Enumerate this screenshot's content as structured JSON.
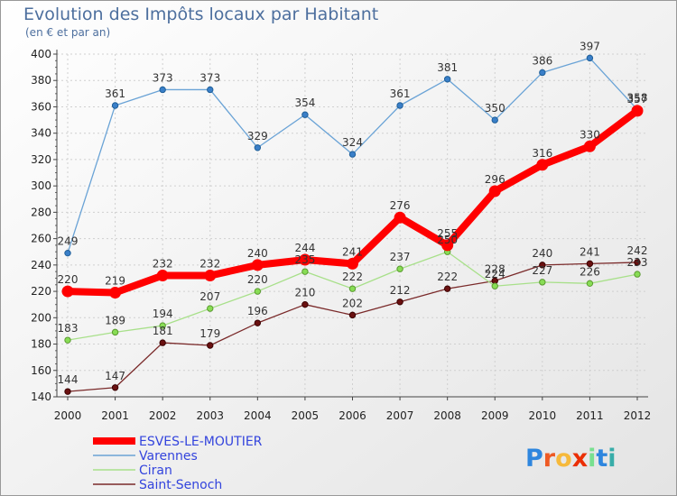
{
  "chart_data": {
    "type": "line",
    "title": "Evolution des Impôts locaux par Habitant",
    "subtitle": "(en € et par an)",
    "x": [
      "2000",
      "2001",
      "2002",
      "2003",
      "2004",
      "2005",
      "2006",
      "2007",
      "2008",
      "2009",
      "2010",
      "2011",
      "2012"
    ],
    "ylim": [
      140,
      400
    ],
    "yticks": [
      140,
      160,
      180,
      200,
      220,
      240,
      260,
      280,
      300,
      320,
      340,
      360,
      380,
      400
    ],
    "grid": true,
    "legend_position": "bottom-left",
    "series": [
      {
        "name": "ESVES-LE-MOUTIER",
        "color": "#ff0000",
        "values": [
          220,
          219,
          232,
          232,
          240,
          244,
          241,
          276,
          255,
          296,
          316,
          330,
          357
        ]
      },
      {
        "name": "Varennes",
        "color": "#5b9bd5",
        "values": [
          249,
          361,
          373,
          373,
          329,
          354,
          324,
          361,
          381,
          350,
          386,
          397,
          358
        ]
      },
      {
        "name": "Ciran",
        "color": "#99dd77",
        "values": [
          183,
          189,
          194,
          207,
          220,
          235,
          222,
          237,
          250,
          224,
          227,
          226,
          233
        ]
      },
      {
        "name": "Saint-Senoch",
        "color": "#7a2020",
        "values": [
          144,
          147,
          181,
          179,
          196,
          210,
          202,
          212,
          222,
          228,
          240,
          241,
          242
        ]
      }
    ]
  },
  "logo": {
    "text": "Proxiti",
    "letters": [
      "P",
      "r",
      "o",
      "x",
      "i",
      "t",
      "i"
    ],
    "colors": [
      "#2e86de",
      "#ee5a24",
      "#f6b93b",
      "#eb2f06",
      "#78e08f",
      "#2e86de",
      "#38ada9"
    ]
  }
}
